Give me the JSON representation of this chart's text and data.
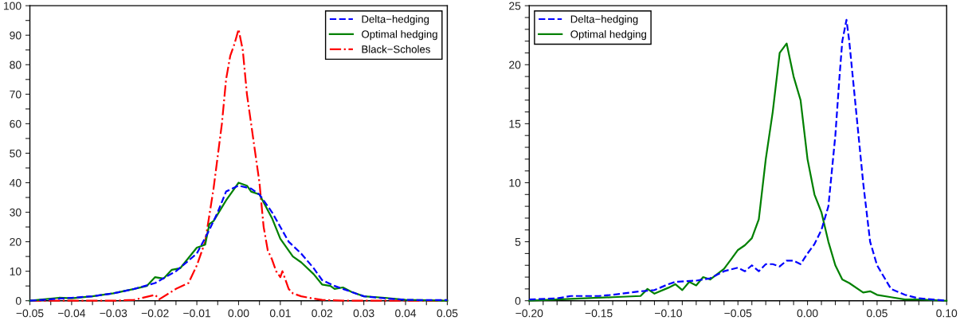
{
  "chart_data": [
    {
      "type": "line",
      "legend": "top right",
      "grid": false,
      "marker": "none",
      "xlim": [
        -0.05,
        0.05
      ],
      "ylim": [
        0,
        100
      ],
      "xticks": [
        {
          "value": -0.05,
          "label": "−0.05"
        },
        {
          "value": -0.045,
          "label": null
        },
        {
          "value": -0.04,
          "label": "−0.04"
        },
        {
          "value": -0.035,
          "label": null
        },
        {
          "value": -0.03,
          "label": "−0.03"
        },
        {
          "value": -0.025,
          "label": null
        },
        {
          "value": -0.02,
          "label": "−0.02"
        },
        {
          "value": -0.015,
          "label": null
        },
        {
          "value": -0.01,
          "label": "−0.01"
        },
        {
          "value": -0.005,
          "label": null
        },
        {
          "value": 0,
          "label": "0.00"
        },
        {
          "value": 0.005,
          "label": null
        },
        {
          "value": 0.01,
          "label": "0.01"
        },
        {
          "value": 0.015,
          "label": null
        },
        {
          "value": 0.02,
          "label": "0.02"
        },
        {
          "value": 0.025,
          "label": null
        },
        {
          "value": 0.03,
          "label": "0.03"
        },
        {
          "value": 0.035,
          "label": null
        },
        {
          "value": 0.04,
          "label": "0.04"
        },
        {
          "value": 0.045,
          "label": null
        },
        {
          "value": 0.05,
          "label": "0.05"
        }
      ],
      "yticks": [
        0,
        {
          "value": 5,
          "label": null
        },
        10,
        {
          "value": 15,
          "label": null
        },
        20,
        {
          "value": 25,
          "label": null
        },
        30,
        {
          "value": 35,
          "label": null
        },
        40,
        {
          "value": 45,
          "label": null
        },
        50,
        {
          "value": 55,
          "label": null
        },
        60,
        {
          "value": 65,
          "label": null
        },
        70,
        {
          "value": 75,
          "label": null
        },
        80,
        {
          "value": 85,
          "label": null
        },
        90,
        {
          "value": 95,
          "label": null
        },
        100
      ],
      "series": [
        {
          "name": "Delta−hedging",
          "color": "#0000ff",
          "line_style": "dashed",
          "x": [
            -0.05,
            -0.045,
            -0.04,
            -0.035,
            -0.03,
            -0.025,
            -0.02,
            -0.015,
            -0.01,
            -0.007,
            -0.005,
            -0.003,
            0,
            0.003,
            0.005,
            0.008,
            0.01,
            0.012,
            0.015,
            0.018,
            0.02,
            0.023,
            0.025,
            0.03,
            0.035,
            0.04,
            0.045,
            0.05
          ],
          "values": [
            0,
            0.5,
            1,
            1.5,
            2.5,
            4,
            6,
            10,
            16,
            24,
            30,
            37,
            39,
            38,
            36,
            30,
            25,
            20,
            16,
            11,
            7,
            5,
            4,
            1.5,
            0.8,
            0.3,
            0.2,
            0.2
          ]
        },
        {
          "name": "Optimal hedging",
          "color": "#008000",
          "line_style": "solid",
          "x": [
            -0.05,
            -0.043,
            -0.04,
            -0.035,
            -0.03,
            -0.025,
            -0.022,
            -0.02,
            -0.018,
            -0.016,
            -0.014,
            -0.01,
            -0.008,
            -0.007,
            -0.006,
            -0.003,
            -0.001,
            0,
            0.002,
            0.003,
            0.005,
            0.008,
            0.01,
            0.013,
            0.015,
            0.018,
            0.02,
            0.022,
            0.023,
            0.025,
            0.027,
            0.03,
            0.035,
            0.04,
            0.05
          ],
          "values": [
            0,
            1,
            0.8,
            1.5,
            2.5,
            4,
            5,
            8,
            7.5,
            10.5,
            11,
            18,
            19,
            26,
            27,
            34,
            38,
            40,
            39,
            37,
            36,
            28,
            21,
            15,
            13,
            9,
            5.5,
            5,
            4,
            4.5,
            3,
            1.5,
            1,
            0.3,
            0
          ]
        },
        {
          "name": "Black−Scholes",
          "color": "#ff0000",
          "line_style": "dashdot",
          "x": [
            -0.05,
            -0.03,
            -0.025,
            -0.02,
            -0.019,
            -0.015,
            -0.012,
            -0.01,
            -0.008,
            -0.006,
            -0.004,
            -0.003,
            -0.002,
            -0.001,
            0,
            0.001,
            0.002,
            0.003,
            0.005,
            0.006,
            0.007,
            0.008,
            0.009,
            0.01,
            0.0105,
            0.012,
            0.013,
            0.015,
            0.018,
            0.02,
            0.025,
            0.05
          ],
          "values": [
            0,
            0,
            0.3,
            2,
            0.5,
            4,
            6,
            12,
            20,
            38,
            60,
            75,
            83,
            87,
            92,
            85,
            70,
            60,
            40,
            25,
            17,
            14,
            10,
            8,
            10,
            4,
            2.5,
            1.5,
            0.7,
            0.3,
            0,
            0
          ]
        }
      ]
    },
    {
      "type": "line",
      "legend": "top left",
      "grid": false,
      "marker": "none",
      "xlim": [
        -0.2,
        0.1
      ],
      "ylim": [
        0,
        25
      ],
      "xticks": [
        {
          "value": -0.2,
          "label": "−0.20"
        },
        {
          "value": -0.19,
          "label": null
        },
        {
          "value": -0.18,
          "label": null
        },
        {
          "value": -0.17,
          "label": null
        },
        {
          "value": -0.16,
          "label": null
        },
        {
          "value": -0.15,
          "label": "−0.15"
        },
        {
          "value": -0.14,
          "label": null
        },
        {
          "value": -0.13,
          "label": null
        },
        {
          "value": -0.12,
          "label": null
        },
        {
          "value": -0.11,
          "label": null
        },
        {
          "value": -0.1,
          "label": "−0.10"
        },
        {
          "value": -0.09,
          "label": null
        },
        {
          "value": -0.08,
          "label": null
        },
        {
          "value": -0.07,
          "label": null
        },
        {
          "value": -0.06,
          "label": null
        },
        {
          "value": -0.05,
          "label": "−0.05"
        },
        {
          "value": -0.04,
          "label": null
        },
        {
          "value": -0.03,
          "label": null
        },
        {
          "value": -0.02,
          "label": null
        },
        {
          "value": -0.01,
          "label": null
        },
        {
          "value": 0,
          "label": "0.00"
        },
        {
          "value": 0.01,
          "label": null
        },
        {
          "value": 0.02,
          "label": null
        },
        {
          "value": 0.03,
          "label": null
        },
        {
          "value": 0.04,
          "label": null
        },
        {
          "value": 0.05,
          "label": "0.05"
        },
        {
          "value": 0.06,
          "label": null
        },
        {
          "value": 0.07,
          "label": null
        },
        {
          "value": 0.08,
          "label": null
        },
        {
          "value": 0.09,
          "label": null
        },
        {
          "value": 0.1,
          "label": "0.10"
        }
      ],
      "yticks": [
        0,
        {
          "value": 1,
          "label": null
        },
        {
          "value": 2,
          "label": null
        },
        {
          "value": 3,
          "label": null
        },
        {
          "value": 4,
          "label": null
        },
        5,
        {
          "value": 6,
          "label": null
        },
        {
          "value": 7,
          "label": null
        },
        {
          "value": 8,
          "label": null
        },
        {
          "value": 9,
          "label": null
        },
        10,
        {
          "value": 11,
          "label": null
        },
        {
          "value": 12,
          "label": null
        },
        {
          "value": 13,
          "label": null
        },
        {
          "value": 14,
          "label": null
        },
        15,
        {
          "value": 16,
          "label": null
        },
        {
          "value": 17,
          "label": null
        },
        {
          "value": 18,
          "label": null
        },
        {
          "value": 19,
          "label": null
        },
        20,
        {
          "value": 21,
          "label": null
        },
        {
          "value": 22,
          "label": null
        },
        {
          "value": 23,
          "label": null
        },
        {
          "value": 24,
          "label": null
        },
        25
      ],
      "series": [
        {
          "name": "Delta−hedging",
          "color": "#0000ff",
          "line_style": "dashed",
          "x": [
            -0.2,
            -0.18,
            -0.17,
            -0.15,
            -0.14,
            -0.12,
            -0.11,
            -0.1,
            -0.095,
            -0.08,
            -0.07,
            -0.06,
            -0.05,
            -0.045,
            -0.04,
            -0.035,
            -0.03,
            -0.025,
            -0.02,
            -0.015,
            -0.01,
            -0.005,
            0,
            0.005,
            0.01,
            0.015,
            0.02,
            0.023,
            0.025,
            0.028,
            0.03,
            0.035,
            0.04,
            0.045,
            0.05,
            0.06,
            0.07,
            0.08,
            0.1
          ],
          "values": [
            0.1,
            0.2,
            0.4,
            0.4,
            0.5,
            0.8,
            0.9,
            1.4,
            1.6,
            1.7,
            1.9,
            2.5,
            2.8,
            2.5,
            3,
            2.5,
            3.1,
            3.1,
            2.9,
            3.4,
            3.4,
            3.1,
            4,
            4.8,
            6,
            8,
            14,
            19,
            22,
            23.8,
            22,
            16,
            10,
            5,
            3,
            1,
            0.5,
            0.2,
            0
          ]
        },
        {
          "name": "Optimal hedging",
          "color": "#008000",
          "line_style": "solid",
          "x": [
            -0.2,
            -0.18,
            -0.16,
            -0.14,
            -0.12,
            -0.115,
            -0.11,
            -0.1,
            -0.095,
            -0.09,
            -0.085,
            -0.08,
            -0.075,
            -0.07,
            -0.06,
            -0.055,
            -0.05,
            -0.045,
            -0.04,
            -0.035,
            -0.03,
            -0.025,
            -0.02,
            -0.015,
            -0.01,
            -0.005,
            0,
            0.005,
            0.01,
            0.015,
            0.02,
            0.025,
            0.03,
            0.04,
            0.045,
            0.05,
            0.06,
            0.07,
            0.08,
            0.1
          ],
          "values": [
            0,
            0.1,
            0.2,
            0.3,
            0.4,
            1,
            0.6,
            1.1,
            1.4,
            0.9,
            1.6,
            1.3,
            2,
            1.8,
            2.7,
            3.5,
            4.3,
            4.7,
            5.3,
            6.9,
            12,
            16,
            21,
            21.8,
            19,
            17,
            12,
            9,
            7.5,
            5,
            3,
            1.8,
            1.5,
            0.7,
            0.8,
            0.5,
            0.3,
            0.1,
            0.1,
            0
          ]
        }
      ]
    }
  ]
}
